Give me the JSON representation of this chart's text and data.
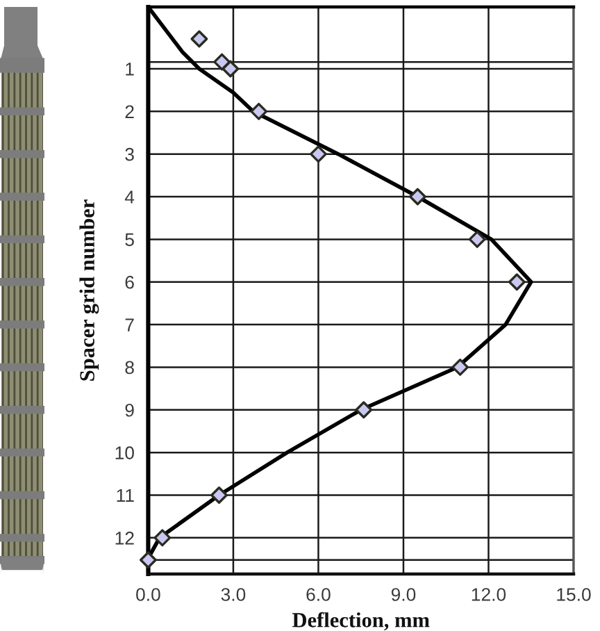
{
  "chart_data": {
    "type": "scatter",
    "xlabel": "Deflection, mm",
    "ylabel": "Spacer grid number",
    "xlim": [
      0,
      15
    ],
    "xticks": [
      {
        "value": 0,
        "label": "0.0"
      },
      {
        "value": 3,
        "label": "3.0"
      },
      {
        "value": 6,
        "label": "6.0"
      },
      {
        "value": 9,
        "label": "9.0"
      },
      {
        "value": 12,
        "label": "12.0"
      },
      {
        "value": 15,
        "label": "15.0"
      }
    ],
    "ylim": [
      12.85,
      -0.45
    ],
    "yticks": [
      {
        "value": 0.84,
        "label": null
      },
      1,
      2,
      3,
      4,
      5,
      6,
      7,
      8,
      9,
      10,
      11,
      12,
      {
        "value": 12.52,
        "label": null
      }
    ],
    "grid": true,
    "series": [
      {
        "type": "line",
        "color": "#000000",
        "marker": "none",
        "line_style": "solid",
        "x": [
          0,
          1.2,
          1.8,
          3.0,
          3.7,
          6.7,
          9.5,
          12.1,
          13.5,
          12.6,
          10.9,
          7.5,
          4.9,
          2.5,
          0.4,
          0,
          0
        ],
        "values": [
          -0.45,
          0.6,
          1.0,
          1.56,
          2.0,
          3.0,
          4.0,
          5.0,
          6.0,
          7.0,
          8.0,
          9.0,
          10.0,
          11.0,
          12.0,
          12.48,
          12.85
        ]
      },
      {
        "color": "#c8c8f0",
        "marker": "diamond",
        "x": [
          1.8,
          2.6,
          2.9,
          3.9,
          6.0,
          9.5,
          11.6,
          13.0,
          11.0,
          7.6,
          2.5,
          0.5,
          0.0
        ],
        "values": [
          0.3,
          0.84,
          1.0,
          2.0,
          3.0,
          4.0,
          5.0,
          6.0,
          8.0,
          9.0,
          11.0,
          12.0,
          12.52
        ]
      }
    ]
  }
}
